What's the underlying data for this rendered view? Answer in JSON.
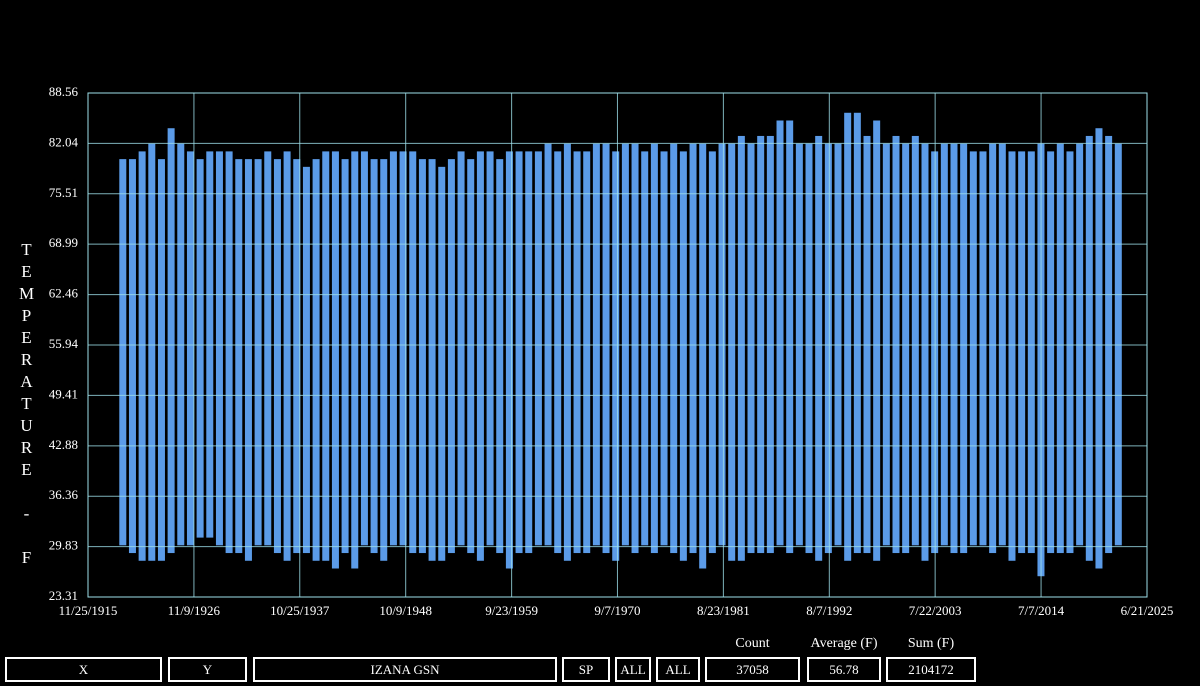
{
  "chart_data": {
    "type": "range",
    "y_label": "TEMPERATURE - F",
    "xlim": [
      1915.9,
      2025.47
    ],
    "xticks": [
      {
        "value": 1915.9,
        "label": "11/25/1915"
      },
      {
        "value": 1926.86,
        "label": "11/9/1926"
      },
      {
        "value": 1937.81,
        "label": "10/25/1937"
      },
      {
        "value": 1948.77,
        "label": "10/9/1948"
      },
      {
        "value": 1959.73,
        "label": "9/23/1959"
      },
      {
        "value": 1970.68,
        "label": "9/7/1970"
      },
      {
        "value": 1981.64,
        "label": "8/23/1981"
      },
      {
        "value": 1992.6,
        "label": "8/7/1992"
      },
      {
        "value": 2003.55,
        "label": "7/22/2003"
      },
      {
        "value": 2014.51,
        "label": "7/7/2014"
      },
      {
        "value": 2025.47,
        "label": "6/21/2025"
      }
    ],
    "ylim": [
      23.31,
      88.56
    ],
    "yticks": [
      23.31,
      29.83,
      36.36,
      42.88,
      49.41,
      55.94,
      62.46,
      68.99,
      75.51,
      82.04,
      88.56
    ],
    "grid": true,
    "color": "#5b9be8",
    "x": [
      1919,
      1920,
      1921,
      1922,
      1923,
      1924,
      1925,
      1926,
      1927,
      1928,
      1929,
      1930,
      1931,
      1932,
      1933,
      1934,
      1935,
      1936,
      1937,
      1938,
      1939,
      1940,
      1941,
      1942,
      1943,
      1944,
      1945,
      1946,
      1947,
      1948,
      1949,
      1950,
      1951,
      1952,
      1953,
      1954,
      1955,
      1956,
      1957,
      1958,
      1959,
      1960,
      1961,
      1962,
      1963,
      1964,
      1965,
      1966,
      1967,
      1968,
      1969,
      1970,
      1971,
      1972,
      1973,
      1974,
      1975,
      1976,
      1977,
      1978,
      1979,
      1980,
      1981,
      1982,
      1983,
      1984,
      1985,
      1986,
      1987,
      1988,
      1989,
      1990,
      1991,
      1992,
      1993,
      1994,
      1995,
      1996,
      1997,
      1998,
      1999,
      2000,
      2001,
      2002,
      2003,
      2004,
      2005,
      2006,
      2007,
      2008,
      2009,
      2010,
      2011,
      2012,
      2013,
      2014,
      2015,
      2016,
      2017,
      2018,
      2019,
      2020,
      2021,
      2022
    ],
    "high": [
      80,
      80,
      81,
      82,
      80,
      84,
      82,
      81,
      80,
      81,
      81,
      81,
      80,
      80,
      80,
      81,
      80,
      81,
      80,
      79,
      80,
      81,
      81,
      80,
      81,
      81,
      80,
      80,
      81,
      81,
      81,
      80,
      80,
      79,
      80,
      81,
      80,
      81,
      81,
      80,
      81,
      81,
      81,
      81,
      82,
      81,
      82,
      81,
      81,
      82,
      82,
      81,
      82,
      82,
      81,
      82,
      81,
      82,
      81,
      82,
      82,
      81,
      82,
      82,
      83,
      82,
      83,
      83,
      85,
      85,
      82,
      82,
      83,
      82,
      82,
      86,
      86,
      83,
      85,
      82,
      83,
      82,
      83,
      82,
      81,
      82,
      82,
      82,
      81,
      81,
      82,
      82,
      81,
      81,
      81,
      82,
      81,
      82,
      81,
      82,
      83,
      84,
      83,
      82
    ],
    "low": [
      30,
      29,
      28,
      28,
      28,
      29,
      30,
      30,
      31,
      31,
      30,
      29,
      29,
      28,
      30,
      30,
      29,
      28,
      29,
      29,
      28,
      28,
      27,
      29,
      27,
      30,
      29,
      28,
      30,
      30,
      29,
      29,
      28,
      28,
      29,
      30,
      29,
      28,
      30,
      29,
      27,
      29,
      29,
      30,
      30,
      29,
      28,
      29,
      29,
      30,
      29,
      28,
      30,
      29,
      30,
      29,
      30,
      29,
      28,
      29,
      27,
      29,
      30,
      28,
      28,
      29,
      29,
      29,
      30,
      29,
      30,
      29,
      28,
      29,
      30,
      28,
      29,
      29,
      28,
      30,
      29,
      29,
      30,
      28,
      29,
      30,
      29,
      29,
      30,
      30,
      29,
      30,
      28,
      29,
      29,
      26,
      29,
      29,
      29,
      30,
      28,
      27,
      29,
      30
    ]
  },
  "footer": {
    "buttons": [
      "X",
      "Y",
      "IZANA GSN",
      "SP",
      "ALL",
      "ALL"
    ],
    "stats": [
      {
        "label": "Count",
        "value": 37058
      },
      {
        "label": "Average (F)",
        "value": 56.78
      },
      {
        "label": "Sum (F)",
        "value": 2104172
      }
    ]
  }
}
